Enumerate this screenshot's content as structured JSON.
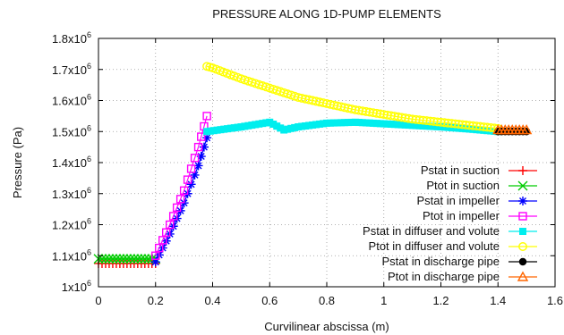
{
  "chart_data": {
    "type": "scatter",
    "title": "PRESSURE ALONG 1D-PUMP ELEMENTS",
    "xlabel": "Curvilinear abscissa (m)",
    "ylabel": "Pressure (Pa)",
    "xlim": [
      0,
      1.6
    ],
    "ylim": [
      1000000,
      1800000
    ],
    "x_ticks": [
      0,
      0.2,
      0.4,
      0.6,
      0.8,
      1.0,
      1.2,
      1.4,
      1.6
    ],
    "x_tick_labels": [
      "0",
      "0.2",
      "0.4",
      "0.6",
      "0.8",
      "1",
      "1.2",
      "1.4",
      "1.6"
    ],
    "y_ticks": [
      1000000,
      1100000,
      1200000,
      1300000,
      1400000,
      1500000,
      1600000,
      1700000,
      1800000
    ],
    "y_tick_mantissa": [
      "1",
      "1.1",
      "1.2",
      "1.3",
      "1.4",
      "1.5",
      "1.6",
      "1.7",
      "1.8"
    ],
    "y_tick_base": "x10",
    "y_tick_exponent": "6",
    "grid": true,
    "grid_style": "dotted",
    "legend_position": "bottom-right",
    "series": [
      {
        "name": "Pstat in suction",
        "color": "#ff0000",
        "marker": "plus",
        "x": [
          0,
          0.05,
          0.1,
          0.15,
          0.2
        ],
        "y": [
          1075000,
          1075000,
          1075000,
          1075000,
          1075000
        ]
      },
      {
        "name": "Ptot in suction",
        "color": "#00cc00",
        "marker": "cross",
        "x": [
          0,
          0.05,
          0.1,
          0.15,
          0.2
        ],
        "y": [
          1090000,
          1090000,
          1090000,
          1090000,
          1090000
        ]
      },
      {
        "name": "Pstat in impeller",
        "color": "#0000ff",
        "marker": "asterisk",
        "x": [
          0.2,
          0.25,
          0.3,
          0.35,
          0.38
        ],
        "y": [
          1080000,
          1170000,
          1270000,
          1390000,
          1480000
        ]
      },
      {
        "name": "Ptot in impeller",
        "color": "#ff00ff",
        "marker": "open-square",
        "x": [
          0.2,
          0.25,
          0.3,
          0.35,
          0.38
        ],
        "y": [
          1100000,
          1200000,
          1310000,
          1450000,
          1550000
        ]
      },
      {
        "name": "Pstat in diffuser and volute",
        "color": "#00eeee",
        "marker": "filled-square",
        "x": [
          0.38,
          0.5,
          0.6,
          0.65,
          0.7,
          0.8,
          0.9,
          1.0,
          1.1,
          1.2,
          1.3,
          1.4
        ],
        "y": [
          1500000,
          1515000,
          1530000,
          1505000,
          1515000,
          1527000,
          1530000,
          1525000,
          1520000,
          1515000,
          1508000,
          1500000
        ]
      },
      {
        "name": "Ptot in diffuser and volute",
        "color": "#ffff00",
        "marker": "open-circle",
        "x": [
          0.38,
          0.4,
          0.5,
          0.6,
          0.7,
          0.8,
          0.9,
          1.0,
          1.1,
          1.2,
          1.3,
          1.4
        ],
        "y": [
          1710000,
          1705000,
          1670000,
          1640000,
          1610000,
          1590000,
          1570000,
          1555000,
          1540000,
          1530000,
          1520000,
          1510000
        ]
      },
      {
        "name": "Pstat in discharge pipe",
        "color": "#000000",
        "marker": "filled-circle",
        "x": [
          1.4,
          1.45,
          1.5
        ],
        "y": [
          1500000,
          1500000,
          1500000
        ]
      },
      {
        "name": "Ptot in discharge pipe",
        "color": "#ff6600",
        "marker": "open-triangle",
        "x": [
          1.4,
          1.45,
          1.5
        ],
        "y": [
          1505000,
          1505000,
          1505000
        ]
      }
    ]
  }
}
